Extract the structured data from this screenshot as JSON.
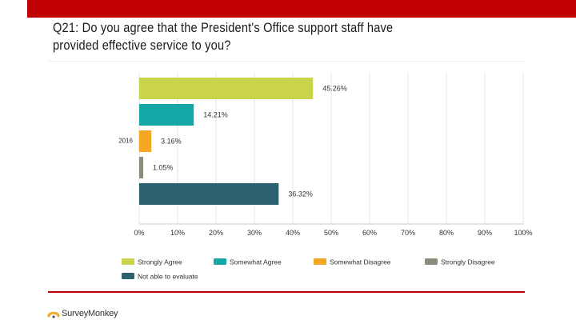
{
  "colors": {
    "accent_bar": "#c00000",
    "strongly_agree": "#c9d44b",
    "somewhat_agree": "#15a6a6",
    "somewhat_disagree": "#f5a623",
    "strongly_disagree": "#8c8c7d",
    "not_able": "#2c6170",
    "grid": "#e3e3e3",
    "logo_mark": "#f5a623"
  },
  "slide": {
    "title_line1": "Q21: Do you agree that the President's Office support staff have",
    "title_line2": "provided effective service to you?"
  },
  "footer": {
    "logo_text": "SurveyMonkey",
    "logo_icon": "surveymonkey-logo-icon"
  },
  "chart_data": {
    "type": "bar",
    "orientation": "horizontal",
    "categories": [
      "2016"
    ],
    "series": [
      {
        "name": "Strongly Agree",
        "values": [
          45.26
        ],
        "label": "45.26%"
      },
      {
        "name": "Somewhat Agree",
        "values": [
          14.21
        ],
        "label": "14.21%"
      },
      {
        "name": "Somewhat Disagree",
        "values": [
          3.16
        ],
        "label": "3.16%"
      },
      {
        "name": "Strongly Disagree",
        "values": [
          1.05
        ],
        "label": "1.05%"
      },
      {
        "name": "Not able to evaluate",
        "values": [
          36.32
        ],
        "label": "36.32%"
      }
    ],
    "xlim": [
      0,
      100
    ],
    "xticks": [
      "0%",
      "10%",
      "20%",
      "30%",
      "40%",
      "50%",
      "60%",
      "70%",
      "80%",
      "90%",
      "100%"
    ],
    "grid": true,
    "legend": "bottom"
  }
}
